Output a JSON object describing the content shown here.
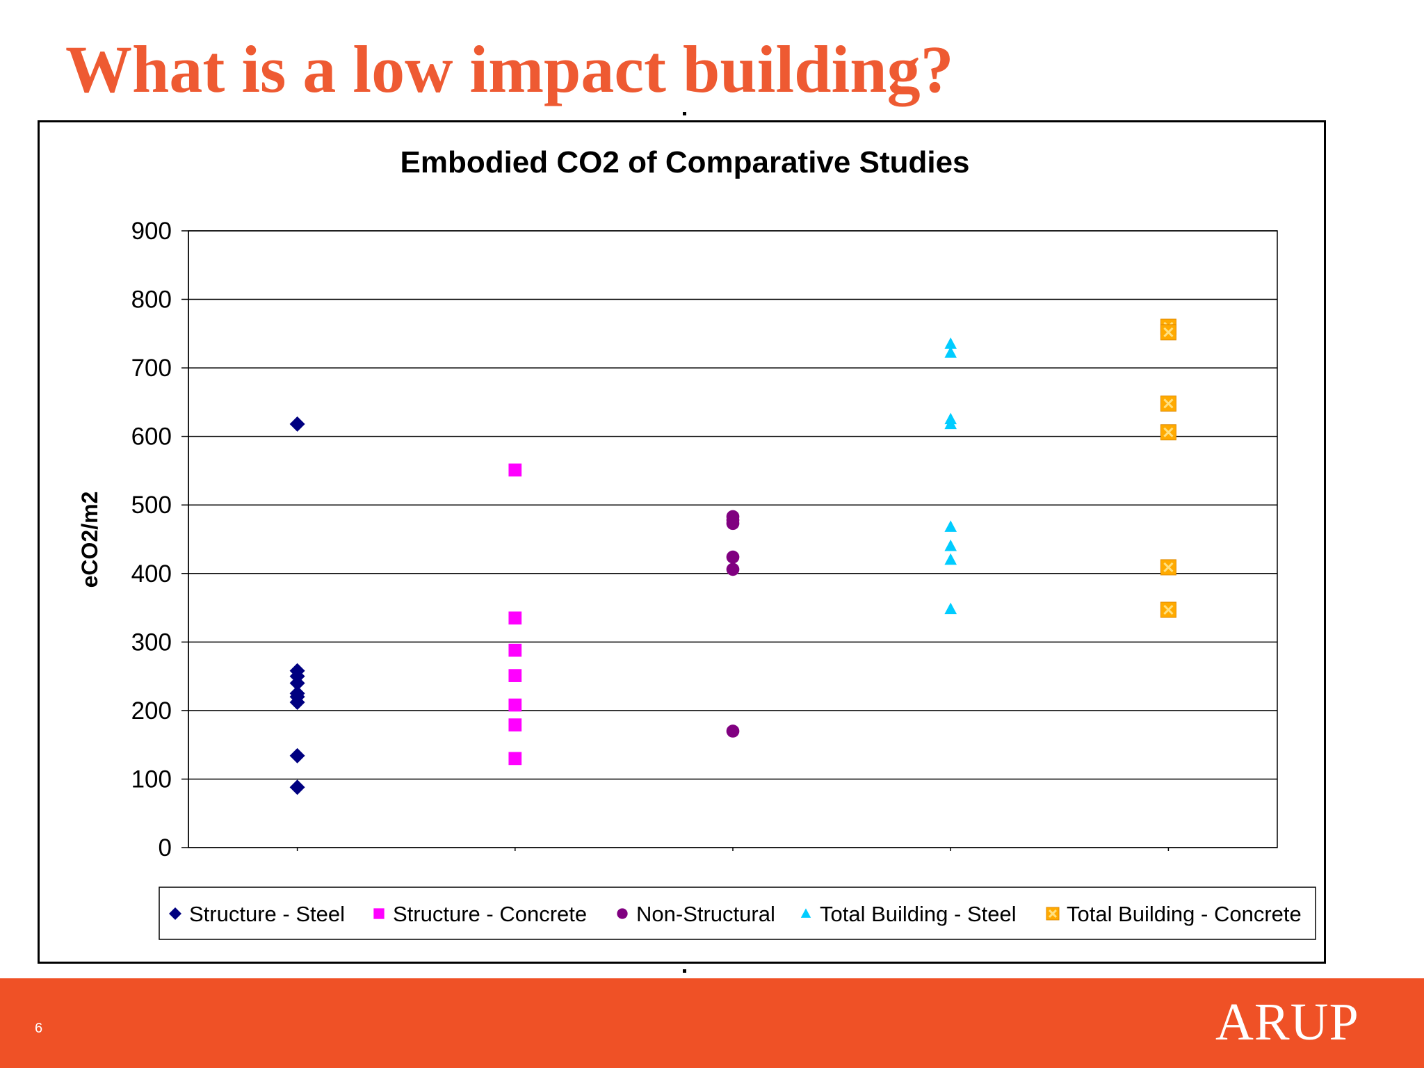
{
  "slide": {
    "title": "What is a low impact building?",
    "page_number": "6",
    "logo": "ARUP"
  },
  "colors": {
    "title": "#ee5a32",
    "footer": "#ef5126"
  },
  "chart_data": {
    "type": "scatter",
    "title": "Embodied CO2 of Comparative Studies",
    "xlabel": "",
    "ylabel": "eCO2/m2",
    "ylim": [
      0,
      900
    ],
    "yticks": [
      0,
      100,
      200,
      300,
      400,
      500,
      600,
      700,
      800,
      900
    ],
    "grid": true,
    "legend_position": "bottom",
    "series": [
      {
        "name": "Structure - Steel",
        "marker": "diamond",
        "color": "#000080",
        "x": 1,
        "values": [
          618,
          258,
          250,
          240,
          225,
          220,
          212,
          134,
          88
        ]
      },
      {
        "name": "Structure - Concrete",
        "marker": "square",
        "color": "#ff00ff",
        "x": 2,
        "values": [
          551,
          335,
          288,
          251,
          208,
          179,
          130
        ]
      },
      {
        "name": "Non-Structural",
        "marker": "circle",
        "color": "#800080",
        "x": 3,
        "values": [
          483,
          478,
          473,
          424,
          406,
          170
        ]
      },
      {
        "name": "Total Building - Steel",
        "marker": "triangle",
        "color": "#00ccff",
        "x": 4,
        "values": [
          735,
          722,
          625,
          618,
          468,
          440,
          420,
          348
        ]
      },
      {
        "name": "Total Building - Concrete",
        "marker": "cross-square",
        "color": "#ffaa00",
        "x": 5,
        "values": [
          760,
          752,
          648,
          606,
          409,
          347
        ]
      }
    ]
  }
}
